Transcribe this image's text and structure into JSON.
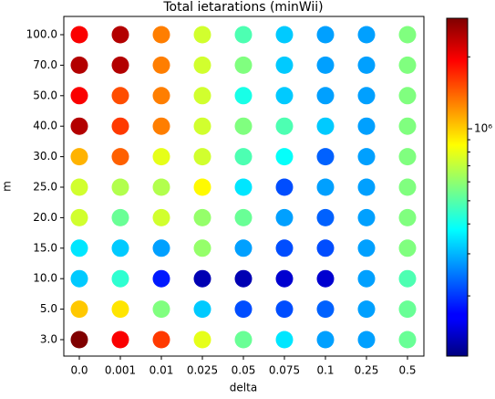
{
  "chart_data": {
    "type": "scatter",
    "title": "Total ietarations (minWii)",
    "xlabel": "delta",
    "ylabel": "m",
    "x": [
      "0.0",
      "0.001",
      "0.01",
      "0.025",
      "0.05",
      "0.075",
      "0.1",
      "0.25",
      "0.5"
    ],
    "y": [
      "3.0",
      "5.0",
      "10.0",
      "15.0",
      "20.0",
      "25.0",
      "30.0",
      "40.0",
      "50.0",
      "70.0",
      "100.0"
    ],
    "values": [
      [
        2900000,
        1960000,
        1610000,
        790000,
        530000,
        350000,
        280000,
        280000,
        530000
      ],
      [
        1020000,
        930000,
        570000,
        320000,
        215000,
        215000,
        229000,
        280000,
        530000
      ],
      [
        320000,
        440000,
        182000,
        132000,
        132000,
        145000,
        145000,
        280000,
        485000
      ],
      [
        350000,
        320000,
        280000,
        610000,
        280000,
        215000,
        215000,
        280000,
        570000
      ],
      [
        740000,
        530000,
        740000,
        610000,
        530000,
        280000,
        229000,
        280000,
        570000
      ],
      [
        740000,
        670000,
        670000,
        870000,
        350000,
        215000,
        280000,
        280000,
        570000
      ],
      [
        1090000,
        1420000,
        790000,
        740000,
        485000,
        385000,
        229000,
        280000,
        570000
      ],
      [
        2460000,
        1610000,
        1290000,
        740000,
        570000,
        485000,
        320000,
        280000,
        570000
      ],
      [
        1960000,
        1510000,
        1290000,
        740000,
        410000,
        320000,
        280000,
        280000,
        570000
      ],
      [
        2460000,
        2460000,
        1290000,
        740000,
        570000,
        320000,
        280000,
        280000,
        570000
      ],
      [
        1960000,
        2460000,
        1290000,
        740000,
        485000,
        320000,
        280000,
        280000,
        570000
      ]
    ],
    "colormap": "jet",
    "color_scale": "log",
    "clim": [
      112000,
      2900000
    ],
    "cticks": [
      {
        "value": 1000000,
        "label": "10⁶"
      }
    ],
    "cminorticks": [
      200000,
      300000,
      400000,
      500000,
      600000,
      700000,
      800000,
      900000,
      2000000
    ]
  }
}
